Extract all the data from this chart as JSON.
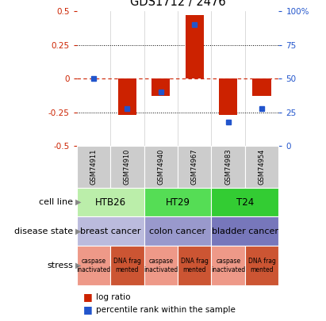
{
  "title": "GDS1712 / 2476",
  "samples": [
    "GSM74911",
    "GSM74910",
    "GSM74940",
    "GSM74967",
    "GSM74983",
    "GSM74954"
  ],
  "log_ratio": [
    0.0,
    -0.27,
    -0.13,
    0.47,
    -0.27,
    -0.13
  ],
  "percentile_rank": [
    50,
    28,
    40,
    90,
    18,
    28
  ],
  "ylim_left": [
    -0.5,
    0.5
  ],
  "ylim_right": [
    0,
    100
  ],
  "bar_color": "#cc2200",
  "dot_color": "#2255cc",
  "cell_lines": [
    {
      "label": "HTB26",
      "cols": [
        0,
        1
      ],
      "color": "#bbeeaa"
    },
    {
      "label": "HT29",
      "cols": [
        2,
        3
      ],
      "color": "#55dd55"
    },
    {
      "label": "T24",
      "cols": [
        4,
        5
      ],
      "color": "#33cc33"
    }
  ],
  "disease_states": [
    {
      "label": "breast cancer",
      "cols": [
        0,
        1
      ],
      "color": "#bbbbdd"
    },
    {
      "label": "colon cancer",
      "cols": [
        2,
        3
      ],
      "color": "#9999cc"
    },
    {
      "label": "bladder cancer",
      "cols": [
        4,
        5
      ],
      "color": "#7777bb"
    }
  ],
  "stress": [
    {
      "label": "caspase\ninactivated",
      "col": 0,
      "color": "#ee9988"
    },
    {
      "label": "DNA frag\nmented",
      "col": 1,
      "color": "#cc5533"
    },
    {
      "label": "caspase\ninactivated",
      "col": 2,
      "color": "#ee9988"
    },
    {
      "label": "DNA frag\nmented",
      "col": 3,
      "color": "#cc5533"
    },
    {
      "label": "caspase\ninactivated",
      "col": 4,
      "color": "#ee9988"
    },
    {
      "label": "DNA frag\nmented",
      "col": 5,
      "color": "#cc5533"
    }
  ],
  "legend_items": [
    {
      "color": "#cc2200",
      "label": "log ratio"
    },
    {
      "color": "#2255cc",
      "label": "percentile rank within the sample"
    }
  ],
  "left_yticks": [
    -0.5,
    -0.25,
    0,
    0.25,
    0.5
  ],
  "right_yticks": [
    0,
    25,
    50,
    75,
    100
  ],
  "zero_line_color": "#cc2200",
  "sample_box_color": "#cccccc",
  "bar_width": 0.55
}
